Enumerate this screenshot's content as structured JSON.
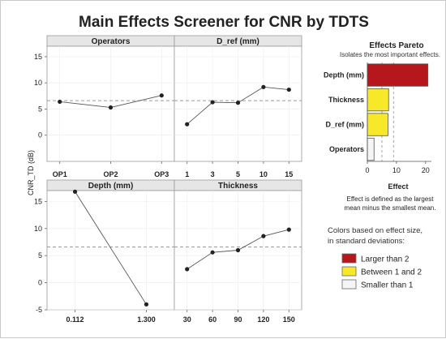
{
  "title": "Main Effects Screener for CNR by TDTS",
  "ylabel": "CNR_TD (dB)",
  "reference_line": 6.6,
  "chart_data": [
    {
      "type": "line",
      "panel": "Operators",
      "categories": [
        "OP1",
        "OP2",
        "OP3"
      ],
      "values": [
        6.4,
        5.3,
        7.6
      ],
      "ylim": [
        -5,
        17
      ],
      "yticks": [
        0,
        5,
        10,
        15
      ]
    },
    {
      "type": "line",
      "panel": "D_ref (mm)",
      "categories": [
        "1",
        "3",
        "5",
        "10",
        "15"
      ],
      "values": [
        2.1,
        6.3,
        6.2,
        9.2,
        8.7
      ],
      "ylim": [
        -5,
        17
      ],
      "yticks": [
        0,
        5,
        10,
        15
      ]
    },
    {
      "type": "line",
      "panel": "Depth (mm)",
      "categories": [
        "0.112",
        "1.300"
      ],
      "values": [
        16.8,
        -4.0
      ],
      "ylim": [
        -5,
        17
      ],
      "yticks": [
        -5,
        0,
        5,
        10,
        15
      ]
    },
    {
      "type": "line",
      "panel": "Thickness",
      "categories": [
        "30",
        "60",
        "90",
        "120",
        "150"
      ],
      "values": [
        2.5,
        5.6,
        6.0,
        8.6,
        9.8
      ],
      "ylim": [
        -5,
        17
      ],
      "yticks": [
        -5,
        0,
        5,
        10,
        15
      ]
    },
    {
      "type": "bar",
      "orientation": "horizontal",
      "title": "Effects Pareto",
      "subtitle": "Isolates the most important effects.",
      "xlabel": "Effect",
      "categories": [
        "Depth (mm)",
        "Thickness",
        "D_ref (mm)",
        "Operators"
      ],
      "values": [
        20.8,
        7.3,
        7.1,
        2.3
      ],
      "colors": [
        "#b5171c",
        "#f8e82a",
        "#f8e82a",
        "#f5f5f5"
      ],
      "xlim": [
        0,
        22
      ],
      "xticks": [
        0,
        10,
        20
      ],
      "reference_lines": [
        5,
        9
      ]
    }
  ],
  "note_lines": [
    "Effect is defined as the largest",
    "mean minus the smallest mean."
  ],
  "legend": {
    "title_lines": [
      "Colors based on effect size,",
      "in standard deviations:"
    ],
    "items": [
      {
        "label": "Larger than 2",
        "color": "#b5171c"
      },
      {
        "label": "Between 1 and 2",
        "color": "#f8e82a"
      },
      {
        "label": "Smaller than 1",
        "color": "#f5f5f5"
      }
    ]
  }
}
